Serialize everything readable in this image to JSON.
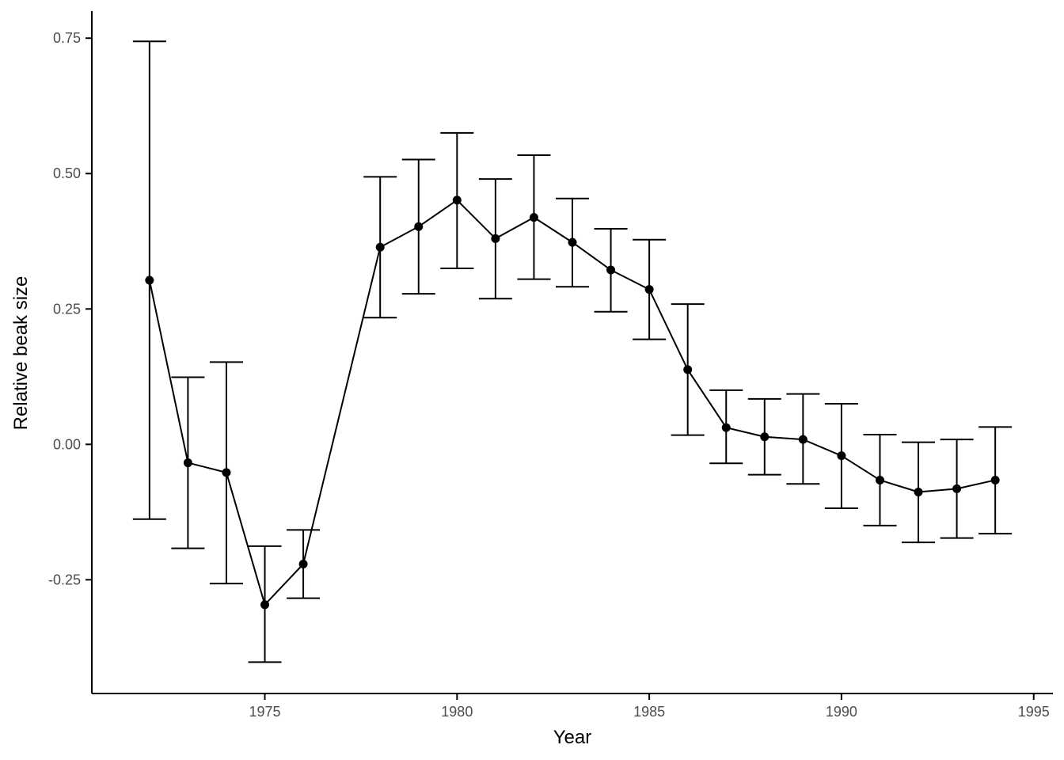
{
  "chart_data": {
    "type": "line",
    "title": "",
    "xlabel": "Year",
    "ylabel": "Relative beak size",
    "xlim": [
      1970.5,
      1995.5
    ],
    "ylim": [
      -0.46,
      0.8
    ],
    "x_ticks": [
      1975,
      1980,
      1985,
      1990,
      1995
    ],
    "x_tick_labels": [
      "1975",
      "1980",
      "1985",
      "1990",
      "1995"
    ],
    "y_ticks": [
      -0.25,
      0,
      0.25,
      0.5,
      0.75
    ],
    "y_tick_labels": [
      "-0.25",
      "0.00",
      "0.25",
      "0.50",
      "0.75"
    ],
    "grid": false,
    "legend": "none",
    "series": [
      {
        "x": [
          1972,
          1973,
          1974,
          1975,
          1976,
          1978,
          1979,
          1980,
          1981,
          1982,
          1983,
          1984,
          1985,
          1986,
          1987,
          1988,
          1989,
          1990,
          1991,
          1992,
          1993,
          1994
        ],
        "y": [
          0.303,
          -0.034,
          -0.052,
          -0.296,
          -0.221,
          0.364,
          0.402,
          0.451,
          0.38,
          0.419,
          0.373,
          0.322,
          0.286,
          0.138,
          0.031,
          0.014,
          0.009,
          -0.021,
          -0.066,
          -0.088,
          -0.082,
          -0.066
        ],
        "error_low": [
          -0.138,
          -0.192,
          -0.257,
          -0.402,
          -0.284,
          0.234,
          0.278,
          0.325,
          0.269,
          0.305,
          0.291,
          0.245,
          0.194,
          0.017,
          -0.035,
          -0.056,
          -0.073,
          -0.118,
          -0.15,
          -0.181,
          -0.173,
          -0.165
        ],
        "error_high": [
          0.744,
          0.124,
          0.152,
          -0.188,
          -0.158,
          0.494,
          0.526,
          0.575,
          0.49,
          0.534,
          0.454,
          0.398,
          0.378,
          0.259,
          0.1,
          0.084,
          0.093,
          0.075,
          0.018,
          0.004,
          0.009,
          0.032
        ]
      }
    ],
    "colors": {
      "line": "#000000",
      "axis": "#000000",
      "tick_text": "#4d4d4d"
    }
  }
}
